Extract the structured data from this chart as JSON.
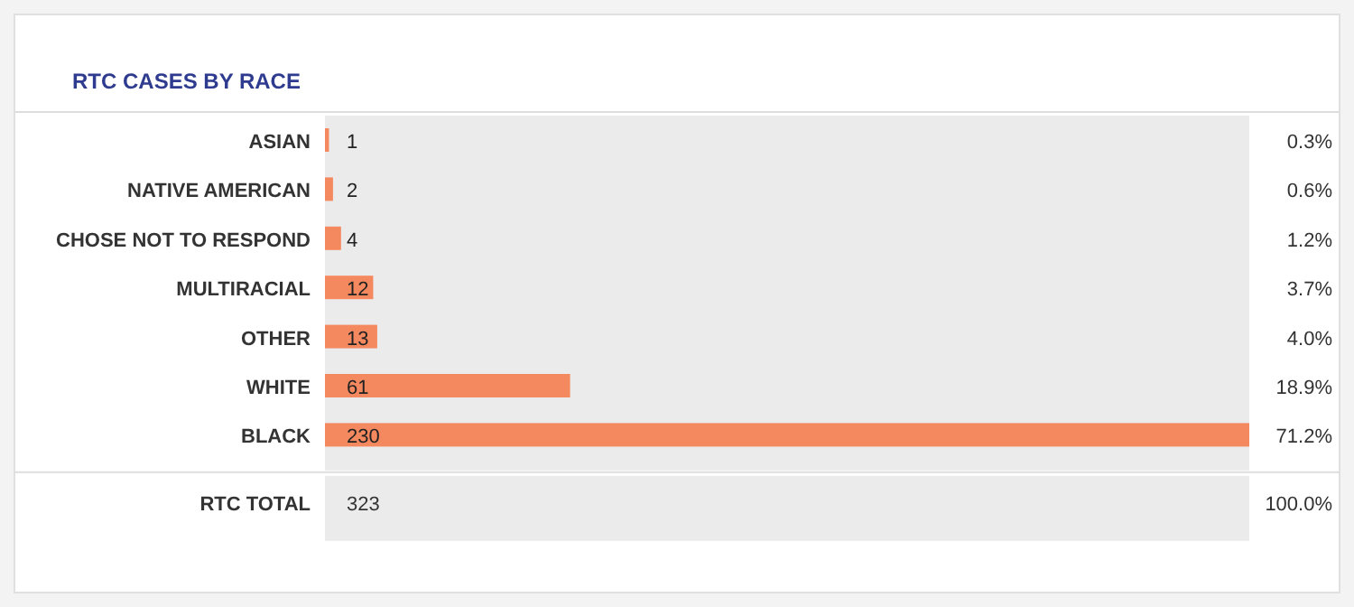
{
  "chart_data": {
    "type": "bar",
    "orientation": "horizontal",
    "title": "RTC CASES BY RACE",
    "categories": [
      "ASIAN",
      "NATIVE AMERICAN",
      "CHOSE NOT TO RESPOND",
      "MULTIRACIAL",
      "OTHER",
      "WHITE",
      "BLACK"
    ],
    "values": [
      1,
      2,
      4,
      12,
      13,
      61,
      230
    ],
    "color": "#f4895f",
    "xlim": [
      0,
      230
    ],
    "data_labels": true,
    "annotations": [
      "0.3%",
      "0.6%",
      "1.2%",
      "3.7%",
      "4.0%",
      "18.9%",
      "71.2%",
      "RTC TOTAL",
      "323",
      "100.0%"
    ]
  }
}
